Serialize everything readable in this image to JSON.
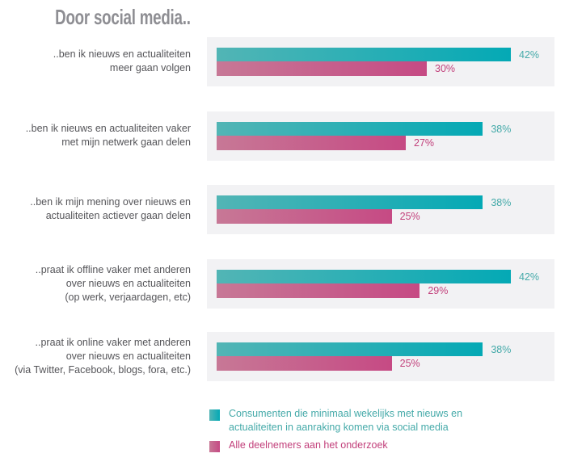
{
  "chart_data": {
    "type": "bar",
    "orientation": "horizontal",
    "title": "Door social media..",
    "categories": [
      "..ben ik nieuws en actualiteiten\nmeer gaan volgen",
      "..ben ik nieuws en actualiteiten vaker\nmet mijn netwerk gaan delen",
      "..ben ik mijn mening over nieuws en\nactualiteiten actiever gaan delen",
      "..praat ik offline vaker met anderen\nover nieuws en actualiteiten\n(op werk, verjaardagen, etc)",
      "..praat ik online vaker met anderen\nover nieuws en actualiteiten\n(via Twitter, Facebook, blogs, fora, etc.)"
    ],
    "series": [
      {
        "name": "Consumenten die minimaal wekelijks met nieuws en actualiteiten in aanraking komen via social media",
        "values": [
          42,
          38,
          38,
          42,
          38
        ],
        "labels": [
          "42%",
          "38%",
          "38%",
          "42%",
          "38%"
        ],
        "color": "#04a9b5"
      },
      {
        "name": "Alle deelnemers aan het onderzoek",
        "values": [
          30,
          27,
          25,
          29,
          25
        ],
        "labels": [
          "30%",
          "27%",
          "25%",
          "29%",
          "25%"
        ],
        "color": "#c64a84"
      }
    ],
    "legend": {
      "position": "bottom",
      "items": [
        "Consumenten die minimaal wekelijks met nieuws en\nactualiteiten in aanraking komen via social media",
        "Alle deelnemers aan het onderzoek"
      ]
    },
    "xlim": [
      0,
      50
    ],
    "unit": "%",
    "grid": false
  }
}
